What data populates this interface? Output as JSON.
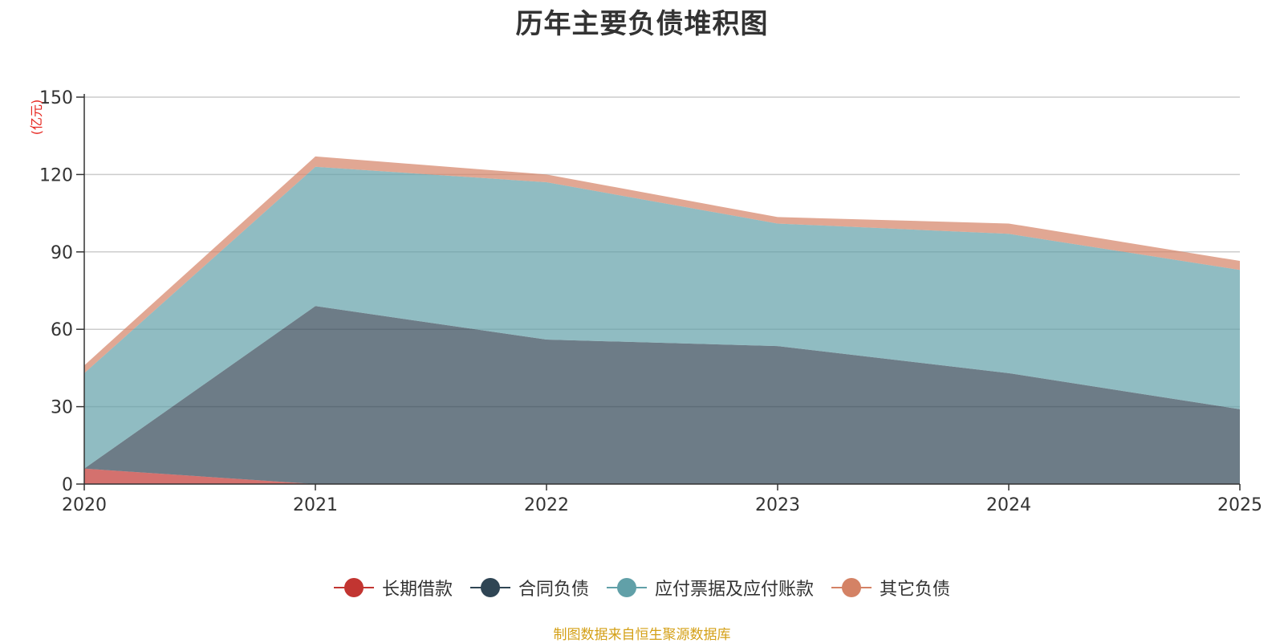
{
  "chart_data": {
    "type": "area",
    "stacked": true,
    "title": "历年主要负债堆积图",
    "unit_label": "(亿元)",
    "categories": [
      "2020",
      "2021",
      "2022",
      "2023",
      "2024",
      "2025"
    ],
    "ylim": [
      0,
      150
    ],
    "yticks": [
      0,
      30,
      60,
      90,
      120,
      150
    ],
    "grid": true,
    "legend_position": "bottom",
    "series": [
      {
        "name": "长期借款",
        "color": "#c23531",
        "values": [
          6,
          0,
          0,
          0,
          0,
          0
        ]
      },
      {
        "name": "合同负债",
        "color": "#2f4554",
        "values": [
          0,
          69,
          56,
          53.5,
          43,
          29
        ]
      },
      {
        "name": "应付票据及应付账款",
        "color": "#61a0a8",
        "values": [
          37,
          54,
          61,
          47.5,
          54,
          54
        ]
      },
      {
        "name": "其它负债",
        "color": "#d48265",
        "values": [
          3,
          4,
          3,
          2.5,
          4,
          3.5
        ]
      }
    ],
    "source_note": "制图数据来自恒生聚源数据库"
  },
  "colors": {
    "unit_label": "#e6261f",
    "source_note": "#d4a017",
    "axis": "#333333",
    "grid": "#cccccc"
  }
}
